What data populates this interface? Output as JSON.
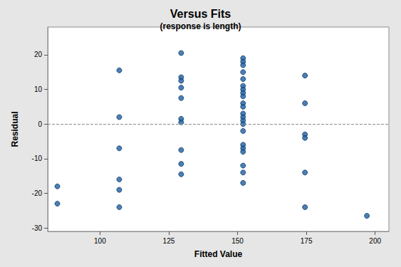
{
  "chart_data": {
    "type": "scatter",
    "title": "Versus Fits",
    "subtitle": "(response is length)",
    "x_label": "Fitted Value",
    "y_label": "Residual",
    "x": [
      84.5,
      84.5,
      107,
      107,
      107,
      107,
      107,
      107,
      129.5,
      129.5,
      129.5,
      129.5,
      129.5,
      129.5,
      129.5,
      129.5,
      129.5,
      129.5,
      152,
      152,
      152,
      152,
      152,
      152,
      152,
      152,
      152,
      152,
      152,
      152,
      152,
      152,
      152,
      152,
      152,
      152,
      152,
      152,
      152,
      152,
      174.5,
      174.5,
      174.5,
      174.5,
      174.5,
      174.5,
      197
    ],
    "values": [
      -18,
      -23,
      15.5,
      2,
      -7,
      -16,
      -19,
      -24,
      20.5,
      13.5,
      12.5,
      10.5,
      7.5,
      1.5,
      0.5,
      -7.5,
      -11.5,
      -14.5,
      19,
      18,
      17,
      15,
      13,
      11,
      10,
      9,
      8,
      6,
      5,
      3,
      2,
      1,
      0,
      -2,
      -6,
      -7,
      -8,
      -12,
      -14,
      -17,
      14,
      6,
      -3,
      -4,
      -14,
      -24,
      -26.5
    ],
    "color": "#1f5fa0",
    "marker": "circle",
    "reference_y": 0,
    "xlim": [
      81,
      205
    ],
    "xticks": [
      100,
      125,
      150,
      175,
      200
    ],
    "ylim": [
      -31,
      28
    ],
    "yticks": [
      -30,
      -20,
      -10,
      0,
      10,
      20
    ],
    "grid": false
  }
}
